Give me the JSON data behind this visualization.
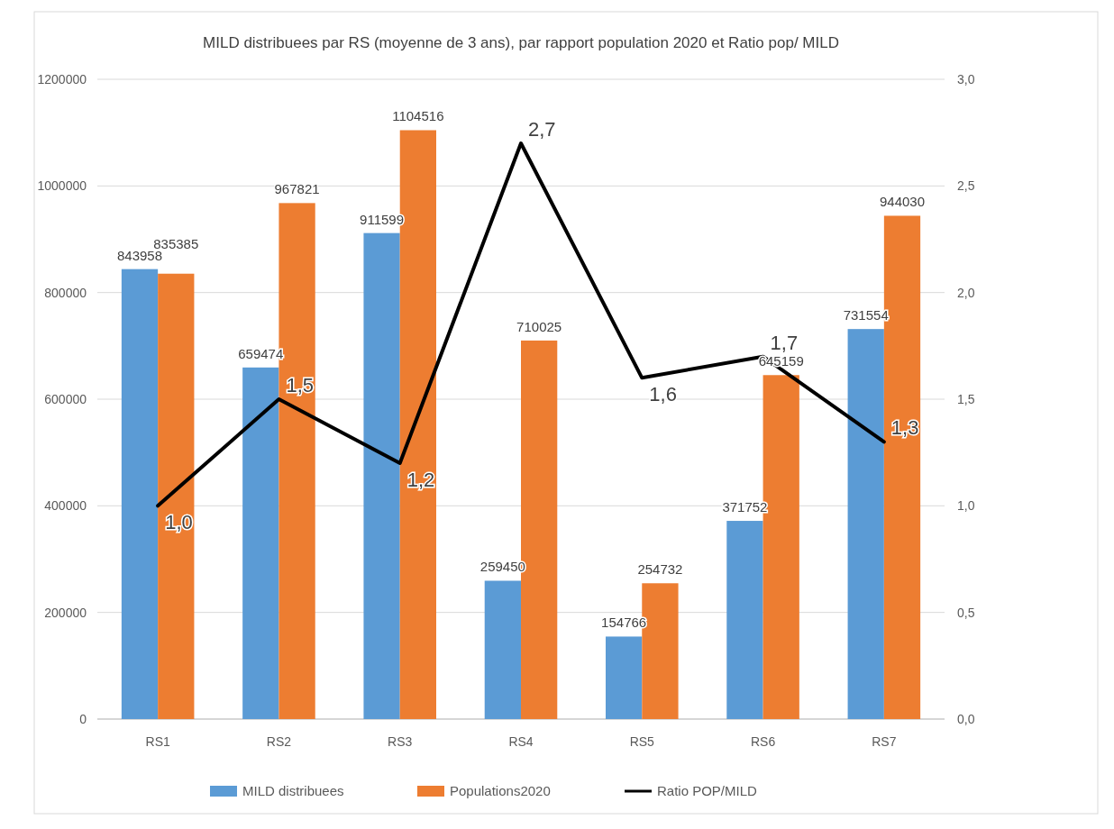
{
  "chart_data": {
    "type": "bar",
    "title": "MILD distribuees par RS (moyenne de 3 ans), par rapport population 2020 et Ratio pop/ MILD",
    "categories": [
      "RS1",
      "RS2",
      "RS3",
      "RS4",
      "RS5",
      "RS6",
      "RS7"
    ],
    "series": [
      {
        "name": "MILD distribuees",
        "color": "#5b9bd5",
        "values": [
          843958,
          659474,
          911599,
          259450,
          154766,
          371752,
          731554
        ],
        "value_labels": [
          "843958",
          "659474",
          "911599",
          "259450",
          "154766",
          "371752",
          "731554"
        ]
      },
      {
        "name": "Populations2020",
        "color": "#ed7d31",
        "values": [
          835385,
          967821,
          1104516,
          710025,
          254732,
          645159,
          944030
        ],
        "value_labels": [
          "835385",
          "967821",
          "1104516",
          "710025",
          "254732",
          "645159",
          "944030"
        ]
      },
      {
        "name": "Ratio POP/MILD",
        "type": "line",
        "axis": "y2",
        "color": "#000000",
        "values": [
          1.0,
          1.5,
          1.2,
          2.7,
          1.6,
          1.7,
          1.3
        ],
        "value_labels": [
          "1,0",
          "1,5",
          "1,2",
          "2,7",
          "1,6",
          "1,7",
          "1,3"
        ]
      }
    ],
    "ylim": [
      0,
      1200000
    ],
    "yticks": [
      0,
      200000,
      400000,
      600000,
      800000,
      1000000,
      1200000
    ],
    "y2lim": [
      0,
      3
    ],
    "y2ticks": [
      {
        "value": 0,
        "label": "0,0"
      },
      {
        "value": 0.5,
        "label": "0,5"
      },
      {
        "value": 1,
        "label": "1,0"
      },
      {
        "value": 1.5,
        "label": "1,5"
      },
      {
        "value": 2,
        "label": "2,0"
      },
      {
        "value": 2.5,
        "label": "2,5"
      },
      {
        "value": 3,
        "label": "3,0"
      }
    ],
    "grid": "y",
    "legend": "bottom",
    "marker": "none",
    "line_style": "solid"
  }
}
